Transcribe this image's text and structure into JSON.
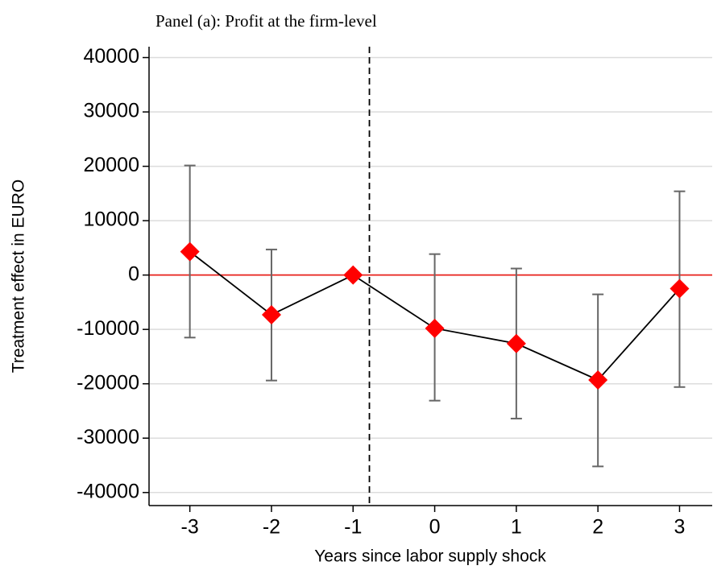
{
  "chart_data": {
    "type": "errorbar",
    "title": "Panel (a): Profit at the firm-level",
    "x_label": "Years since labor supply shock",
    "y_label": "Treatment effect in EURO",
    "x": [
      -3,
      -2,
      -1,
      0,
      1,
      2,
      3
    ],
    "values": [
      4300,
      -7300,
      0,
      -9800,
      -12600,
      -19300,
      -2500
    ],
    "upper": [
      20150,
      4700,
      null,
      3850,
      1200,
      -3550,
      15400
    ],
    "lower": [
      -11500,
      -19400,
      null,
      -23100,
      -26400,
      -35200,
      -20600
    ],
    "color": "#ff0000",
    "line_color": "#000000",
    "error_color": "#666666",
    "xlim": [
      -3.5,
      3.4
    ],
    "xticks": [
      -3,
      -2,
      -1,
      0,
      1,
      2,
      3
    ],
    "ylim": [
      -42400,
      42000
    ],
    "yticks": [
      -40000,
      -30000,
      -20000,
      -10000,
      0,
      10000,
      20000,
      30000,
      40000
    ],
    "reference_y": 0,
    "reference_x": -0.8,
    "grid": true
  }
}
